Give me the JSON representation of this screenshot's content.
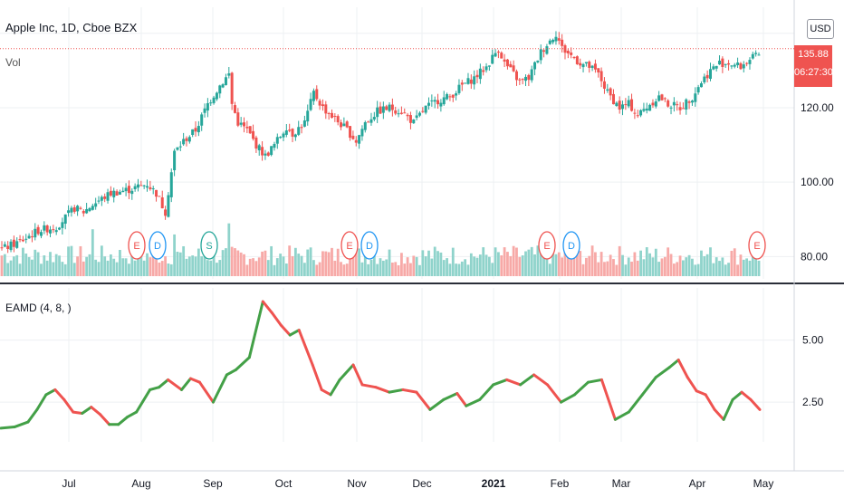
{
  "header": {
    "title": "Apple Inc, 1D, Cboe BZX",
    "volume_label": "Vol",
    "currency_button": "USD",
    "last_price": "135.88",
    "countdown": "06:27:30"
  },
  "indicator": {
    "label": "EAMD (4, 8, )"
  },
  "colors": {
    "up": "#26a69a",
    "down": "#ef5350",
    "vol_up": "#8fd3cb",
    "vol_down": "#f7a9a7",
    "line_up": "#43a047",
    "line_down": "#ef5350",
    "grid": "#eef0f3",
    "axis_text": "#131722"
  },
  "chart_data": [
    {
      "type": "candlestick",
      "title": "Apple Inc, 1D, Cboe BZX",
      "ylim": [
        74,
        147
      ],
      "yticks": [
        80,
        100,
        120
      ],
      "ytick_labels": [
        "80.00",
        "100.00",
        "120.00"
      ],
      "x_labels": [
        "Jul",
        "Aug",
        "Sep",
        "Oct",
        "Nov",
        "Dec",
        "2021",
        "Feb",
        "Mar",
        "Apr",
        "May"
      ],
      "close_path": [
        [
          0,
          82
        ],
        [
          6,
          84
        ],
        [
          12,
          87
        ],
        [
          18,
          88
        ],
        [
          24,
          93
        ],
        [
          27,
          92
        ],
        [
          30,
          94
        ],
        [
          36,
          97
        ],
        [
          42,
          98
        ],
        [
          48,
          99.5
        ],
        [
          51,
          97
        ],
        [
          54,
          92
        ],
        [
          57,
          108
        ],
        [
          60,
          111
        ],
        [
          64,
          114
        ],
        [
          68,
          121
        ],
        [
          72,
          126
        ],
        [
          75,
          129
        ],
        [
          76,
          121
        ],
        [
          78,
          116
        ],
        [
          81,
          114
        ],
        [
          84,
          110
        ],
        [
          87,
          107
        ],
        [
          90,
          110
        ],
        [
          94,
          115
        ],
        [
          96,
          113
        ],
        [
          100,
          116
        ],
        [
          103,
          124
        ],
        [
          106,
          120
        ],
        [
          110,
          117
        ],
        [
          114,
          114
        ],
        [
          117,
          111
        ],
        [
          120,
          116
        ],
        [
          124,
          119
        ],
        [
          128,
          120
        ],
        [
          132,
          119
        ],
        [
          136,
          116
        ],
        [
          140,
          120
        ],
        [
          144,
          122
        ],
        [
          148,
          123
        ],
        [
          152,
          126
        ],
        [
          156,
          128
        ],
        [
          160,
          131
        ],
        [
          164,
          136
        ],
        [
          166,
          132
        ],
        [
          168,
          130
        ],
        [
          171,
          127
        ],
        [
          174,
          128
        ],
        [
          178,
          135
        ],
        [
          181,
          138
        ],
        [
          183,
          140
        ],
        [
          185,
          136
        ],
        [
          188,
          134
        ],
        [
          191,
          132
        ],
        [
          194,
          131
        ],
        [
          197,
          129
        ],
        [
          200,
          124
        ],
        [
          204,
          120
        ],
        [
          207,
          121
        ],
        [
          210,
          118
        ],
        [
          214,
          121
        ],
        [
          217,
          123
        ],
        [
          220,
          121
        ],
        [
          224,
          120
        ],
        [
          228,
          123
        ],
        [
          231,
          127
        ],
        [
          234,
          130
        ],
        [
          237,
          132
        ],
        [
          240,
          132
        ],
        [
          244,
          131
        ],
        [
          247,
          133
        ],
        [
          250,
          134
        ]
      ],
      "volume_bars": 250,
      "earnings_markers": [
        "E",
        "D",
        "S",
        "E",
        "D",
        "E",
        "D",
        "E"
      ]
    },
    {
      "type": "line",
      "title": "EAMD (4, 8, )",
      "ylim": [
        0.9,
        7.1
      ],
      "yticks": [
        2.5,
        5.0
      ],
      "ytick_labels": [
        "2.50",
        "5.00"
      ],
      "values": [
        [
          0,
          1.45
        ],
        [
          3,
          1.5
        ],
        [
          6,
          1.7
        ],
        [
          8,
          2.2
        ],
        [
          10,
          2.8
        ],
        [
          12,
          3.0
        ],
        [
          14,
          2.6
        ],
        [
          16,
          2.1
        ],
        [
          18,
          2.05
        ],
        [
          20,
          2.3
        ],
        [
          22,
          2.0
        ],
        [
          24,
          1.6
        ],
        [
          26,
          1.6
        ],
        [
          28,
          1.9
        ],
        [
          30,
          2.1
        ],
        [
          33,
          3.0
        ],
        [
          35,
          3.1
        ],
        [
          37,
          3.4
        ],
        [
          40,
          3.0
        ],
        [
          42,
          3.45
        ],
        [
          44,
          3.3
        ],
        [
          47,
          2.5
        ],
        [
          50,
          3.6
        ],
        [
          52,
          3.8
        ],
        [
          55,
          4.3
        ],
        [
          58,
          6.55
        ],
        [
          60,
          6.1
        ],
        [
          62,
          5.6
        ],
        [
          64,
          5.2
        ],
        [
          66,
          5.4
        ],
        [
          69,
          4.0
        ],
        [
          71,
          3.0
        ],
        [
          73,
          2.8
        ],
        [
          75,
          3.4
        ],
        [
          78,
          4.0
        ],
        [
          80,
          3.2
        ],
        [
          83,
          3.1
        ],
        [
          86,
          2.9
        ],
        [
          89,
          3.0
        ],
        [
          92,
          2.9
        ],
        [
          95,
          2.2
        ],
        [
          98,
          2.6
        ],
        [
          101,
          2.85
        ],
        [
          103,
          2.35
        ],
        [
          106,
          2.6
        ],
        [
          109,
          3.2
        ],
        [
          112,
          3.4
        ],
        [
          115,
          3.2
        ],
        [
          118,
          3.6
        ],
        [
          121,
          3.2
        ],
        [
          124,
          2.5
        ],
        [
          127,
          2.8
        ],
        [
          130,
          3.3
        ],
        [
          133,
          3.4
        ],
        [
          136,
          1.8
        ],
        [
          139,
          2.1
        ],
        [
          142,
          2.8
        ],
        [
          145,
          3.5
        ],
        [
          148,
          3.9
        ],
        [
          150,
          4.2
        ],
        [
          152,
          3.5
        ],
        [
          154,
          2.95
        ],
        [
          156,
          2.8
        ],
        [
          158,
          2.2
        ],
        [
          160,
          1.8
        ],
        [
          162,
          2.6
        ],
        [
          164,
          2.9
        ],
        [
          166,
          2.6
        ],
        [
          168,
          2.2
        ]
      ]
    }
  ]
}
